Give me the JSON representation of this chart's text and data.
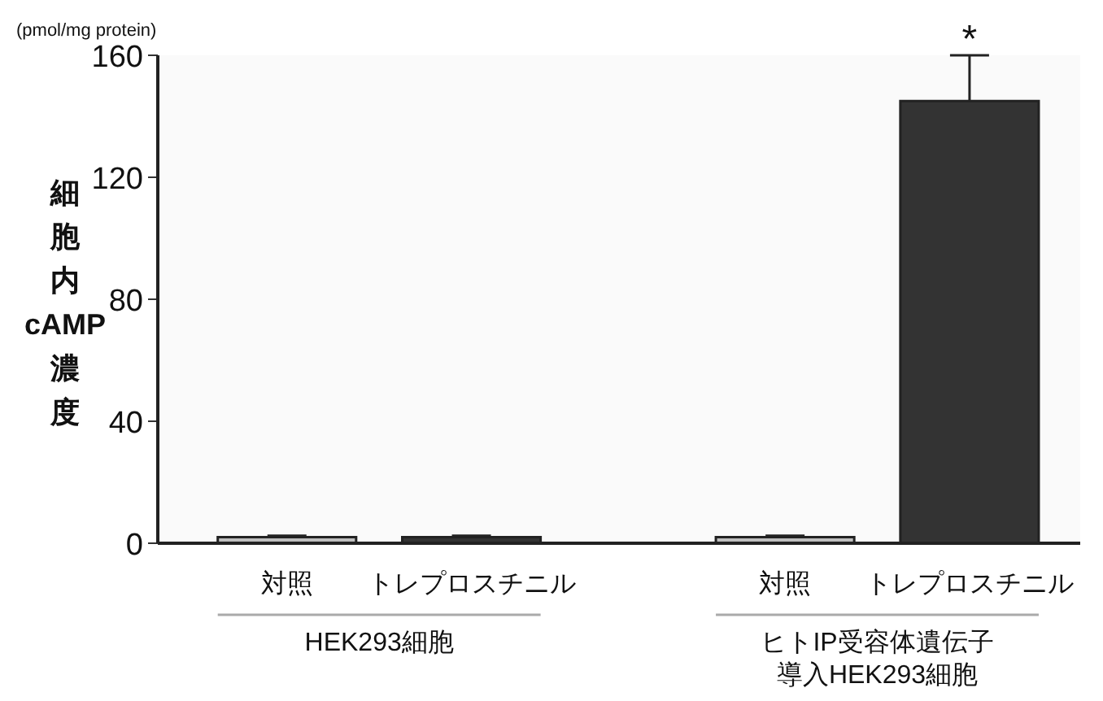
{
  "chart_data": {
    "type": "bar",
    "ylabel": "細胞内cAMP濃度",
    "categories": [
      "対照",
      "トレプロスチニル",
      "対照",
      "トレプロスチニル"
    ],
    "values": [
      2,
      2,
      2,
      145
    ],
    "errors": [
      0.5,
      0.5,
      0.5,
      15
    ],
    "colors": [
      "#bfbfbf",
      "#333333",
      "#bfbfbf",
      "#333333"
    ],
    "ylim": [
      0,
      160
    ],
    "yticks": [
      0,
      40,
      80,
      120,
      160
    ],
    "grid": false,
    "annotations": [
      "(pmol/mg protein)",
      "HEK293細胞",
      "ヒトIP受容体遺伝子導入HEK293細胞",
      "*"
    ]
  }
}
